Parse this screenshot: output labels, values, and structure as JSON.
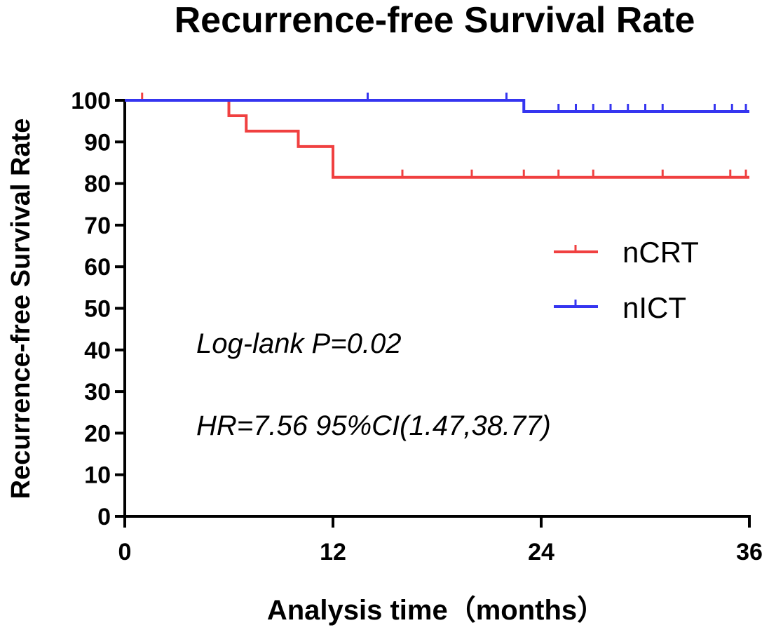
{
  "chart_data": {
    "type": "line",
    "subtype": "kaplan-meier-step",
    "title": "Recurrence-free Survival Rate",
    "xlabel": "Analysis time（months）",
    "ylabel": "Recurrence-free Survival Rate",
    "xlim": [
      0,
      36
    ],
    "ylim": [
      0,
      100
    ],
    "xticks": [
      0,
      12,
      24,
      36
    ],
    "yticks": [
      0,
      10,
      20,
      30,
      40,
      50,
      60,
      70,
      80,
      90,
      100
    ],
    "xtick_labels": [
      "0",
      "12",
      "24",
      "36"
    ],
    "ytick_labels": [
      "0",
      "10",
      "20",
      "30",
      "40",
      "50",
      "60",
      "70",
      "80",
      "90",
      "100"
    ],
    "grid": false,
    "legend_position": "right",
    "series": [
      {
        "name": "nCRT",
        "color": "#f04040",
        "steps": [
          [
            0,
            100
          ],
          [
            6,
            96.3
          ],
          [
            7,
            92.6
          ],
          [
            10,
            88.9
          ],
          [
            12,
            81.5
          ],
          [
            36,
            81.5
          ]
        ],
        "censored": [
          [
            1,
            100
          ],
          [
            16,
            81.5
          ],
          [
            20,
            81.5
          ],
          [
            23,
            81.5
          ],
          [
            25,
            81.5
          ],
          [
            27,
            81.5
          ],
          [
            31,
            81.5
          ],
          [
            34.9,
            81.5
          ],
          [
            35.8,
            81.5
          ]
        ]
      },
      {
        "name": "nICT",
        "color": "#3535f0",
        "steps": [
          [
            0,
            100
          ],
          [
            23,
            97.3
          ],
          [
            36,
            97.3
          ]
        ],
        "censored": [
          [
            14,
            100
          ],
          [
            22,
            100
          ],
          [
            25,
            97.3
          ],
          [
            26,
            97.3
          ],
          [
            27,
            97.3
          ],
          [
            28,
            97.3
          ],
          [
            29,
            97.3
          ],
          [
            30,
            97.3
          ],
          [
            31,
            97.3
          ],
          [
            34,
            97.3
          ],
          [
            35,
            97.3
          ],
          [
            35.8,
            97.3
          ]
        ]
      }
    ],
    "annotations": [
      "Log-lank P=0.02",
      "HR=7.56 95%CI(1.47,38.77)"
    ]
  }
}
